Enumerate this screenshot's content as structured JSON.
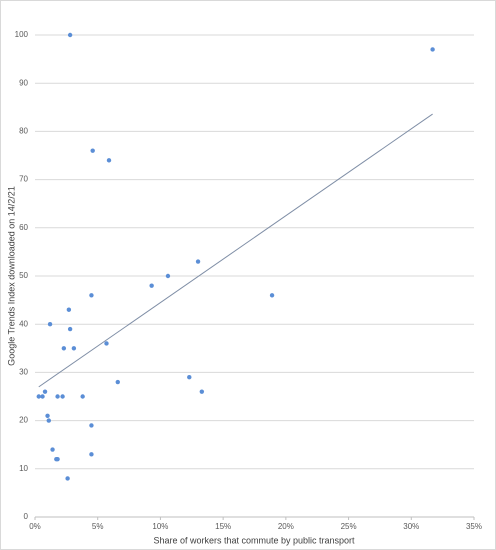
{
  "chart_data": {
    "type": "scatter",
    "xlabel": "Share of workers that commute by public transport",
    "ylabel": "Google Trends Index downloaded on 14/2/21",
    "x": [
      2.8,
      31.7,
      4.6,
      5.9,
      13.0,
      10.6,
      9.3,
      4.5,
      18.9,
      2.7,
      1.2,
      2.8,
      5.7,
      2.3,
      3.1,
      6.6,
      12.3,
      13.3,
      0.8,
      0.3,
      0.6,
      1.8,
      2.2,
      3.8,
      1.0,
      1.1,
      4.5,
      1.4,
      1.7,
      1.8,
      4.5,
      2.6
    ],
    "values": [
      100,
      97,
      76,
      74,
      53,
      50,
      48,
      46,
      46,
      43,
      40,
      39,
      36,
      35,
      35,
      28,
      29,
      26,
      26,
      25,
      25,
      25,
      25,
      25,
      21,
      20,
      19,
      14,
      12,
      12,
      13,
      8
    ],
    "color": "#5b8ed6",
    "trendline": {
      "x": [
        0.3,
        31.7
      ],
      "values": [
        27,
        83.6
      ],
      "color": "#7f8ea6"
    },
    "xlim": [
      0,
      35
    ],
    "xticks": [
      {
        "value": 0,
        "label": "0%"
      },
      {
        "value": 5,
        "label": "5%"
      },
      {
        "value": 10,
        "label": "10%"
      },
      {
        "value": 15,
        "label": "15%"
      },
      {
        "value": 20,
        "label": "20%"
      },
      {
        "value": 25,
        "label": "25%"
      },
      {
        "value": 30,
        "label": "30%"
      },
      {
        "value": 35,
        "label": "35%"
      }
    ],
    "ylim": [
      0,
      100
    ],
    "yticks": [
      0,
      10,
      20,
      30,
      40,
      50,
      60,
      70,
      80,
      90,
      100
    ],
    "grid": true
  }
}
